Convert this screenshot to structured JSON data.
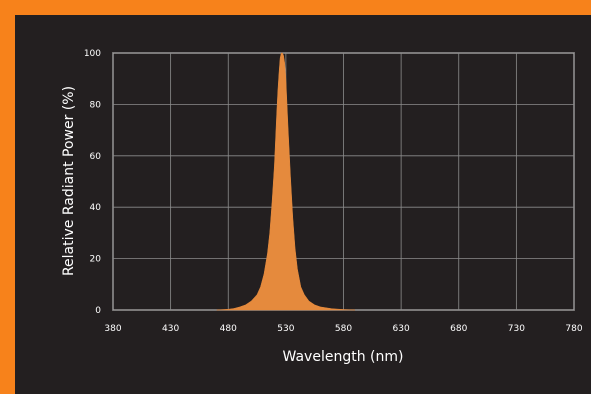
{
  "colors": {
    "border": "#f7821b",
    "background": "#231f20",
    "plot_area": "#231f20",
    "grid": "#8c8c8c",
    "spectrum_fill": "#e58a3d",
    "text": "#ffffff"
  },
  "chart_data": {
    "type": "area",
    "title": "",
    "xlabel": "Wavelength (nm)",
    "ylabel": "Relative Radiant Power (%)",
    "xlim": [
      380,
      780
    ],
    "ylim": [
      0,
      100
    ],
    "xticks": [
      380,
      430,
      480,
      530,
      580,
      630,
      680,
      730,
      780
    ],
    "yticks": [
      0,
      20,
      40,
      60,
      80,
      100
    ],
    "grid": true,
    "legend": "none",
    "series": [
      {
        "x": [
          470,
          480,
          485,
          490,
          495,
          500,
          505,
          508,
          511,
          514,
          516,
          518,
          520,
          521,
          522,
          523,
          524,
          525,
          526,
          527,
          528,
          529,
          530,
          531,
          532,
          534,
          536,
          538,
          540,
          543,
          546,
          550,
          555,
          560,
          570,
          580,
          590
        ],
        "y": [
          0,
          0.3,
          0.6,
          1.2,
          2,
          3.5,
          6,
          9,
          14,
          22,
          30,
          42,
          56,
          66,
          76,
          85,
          92,
          98,
          100,
          100,
          99,
          96,
          90,
          80,
          70,
          52,
          36,
          24,
          16,
          9,
          6,
          3.5,
          2,
          1.2,
          0.5,
          0.2,
          0
        ]
      }
    ]
  }
}
